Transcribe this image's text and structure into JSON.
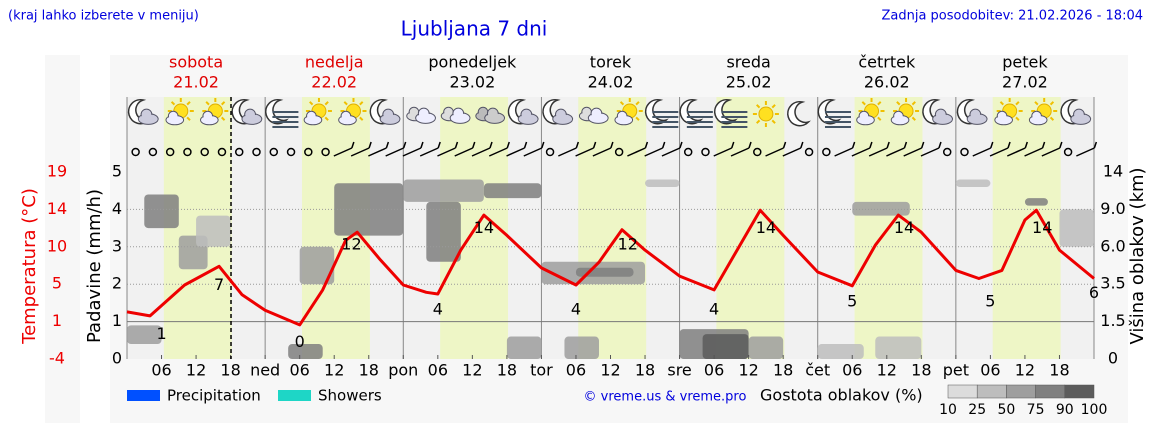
{
  "chart_data": {
    "type": "meteogram",
    "title": "Ljubljana 7 dni",
    "subtitle": "(kraj lahko izberete v meniju)",
    "updated": "Zadnja posodobitev: 21.02.2026 - 18:04",
    "credit": "© vreme.us & vreme.pro",
    "now": 18.07,
    "daylight": [
      6.4,
      18.2
    ],
    "days": [
      {
        "name": "sobota",
        "date": "21.02",
        "color": "#e00000"
      },
      {
        "name": "nedelja",
        "date": "22.02",
        "color": "#e00000"
      },
      {
        "name": "ponedeljek",
        "date": "23.02",
        "color": "#000000"
      },
      {
        "name": "torek",
        "date": "24.02",
        "color": "#000000"
      },
      {
        "name": "sreda",
        "date": "25.02",
        "color": "#000000"
      },
      {
        "name": "četrtek",
        "date": "26.02",
        "color": "#000000"
      },
      {
        "name": "petek",
        "date": "27.02",
        "color": "#000000"
      }
    ],
    "xlim": [
      0,
      168
    ],
    "xticks": [
      {
        "value": 6,
        "label": "06"
      },
      12,
      18,
      {
        "value": 24,
        "label": "ned"
      },
      {
        "value": 30,
        "label": "06"
      },
      {
        "value": 36,
        "label": "12"
      },
      {
        "value": 42,
        "label": "18"
      },
      {
        "value": 48,
        "label": "pon"
      },
      {
        "value": 54,
        "label": "06"
      },
      {
        "value": 60,
        "label": "12"
      },
      {
        "value": 66,
        "label": "18"
      },
      {
        "value": 72,
        "label": "tor"
      },
      {
        "value": 78,
        "label": "06"
      },
      {
        "value": 84,
        "label": "12"
      },
      {
        "value": 90,
        "label": "18"
      },
      {
        "value": 96,
        "label": "sre"
      },
      {
        "value": 102,
        "label": "06"
      },
      {
        "value": 108,
        "label": "12"
      },
      {
        "value": 114,
        "label": "18"
      },
      {
        "value": 120,
        "label": "čet"
      },
      {
        "value": 126,
        "label": "06"
      },
      {
        "value": 132,
        "label": "12"
      },
      {
        "value": 138,
        "label": "18"
      },
      {
        "value": 144,
        "label": "pet"
      },
      {
        "value": 150,
        "label": "06"
      },
      {
        "value": 156,
        "label": "12"
      },
      {
        "value": 162,
        "label": "18"
      }
    ],
    "ylabel": "Padavine (mm/h)",
    "ylim": [
      0,
      5
    ],
    "yticks": [
      0,
      1,
      2,
      3,
      4,
      5
    ],
    "temp_label": "Temperatura (°C)",
    "temp_lim": [
      -4,
      19
    ],
    "temp_ticks": [
      -4,
      {
        "value": 0.6,
        "label": "1"
      },
      {
        "value": 5.2,
        "label": "5"
      },
      {
        "value": 9.8,
        "label": "10"
      },
      {
        "value": 14.4,
        "label": "14"
      },
      19
    ],
    "y2label": "Višina oblakov (km)",
    "y2lim": [
      0,
      14
    ],
    "y2scale": "piecewise",
    "y2ticks": [
      0,
      1.5,
      3.5,
      {
        "value": 6,
        "label": "6.0"
      },
      {
        "value": 9,
        "label": "9.0"
      },
      14
    ],
    "grid": true,
    "temperature": {
      "color": "#ee0000",
      "x": [
        0,
        4,
        10,
        16,
        20,
        24,
        30,
        34,
        38,
        40,
        44,
        48,
        52,
        54,
        58,
        62,
        66,
        72,
        78,
        82,
        86,
        90,
        96,
        102,
        106,
        110,
        114,
        120,
        126,
        130,
        134,
        138,
        144,
        148,
        152,
        156,
        158,
        162,
        168
      ],
      "values": [
        1.8,
        1.3,
        5.1,
        7.4,
        3.9,
        2.0,
        0.2,
        4.5,
        10.6,
        11.6,
        8.2,
        5.1,
        4.2,
        4.0,
        9.4,
        13.7,
        11.2,
        7.2,
        5.1,
        7.9,
        11.9,
        9.4,
        6.2,
        4.5,
        9.4,
        14.3,
        11.2,
        6.7,
        5.0,
        10.0,
        13.7,
        11.6,
        6.9,
        5.9,
        6.9,
        13.1,
        14.3,
        9.4,
        5.9
      ]
    },
    "temp_labels": {
      "x": [
        6,
        16,
        30,
        39,
        54,
        62,
        78,
        87,
        102,
        111,
        126,
        135,
        150,
        159,
        168
      ],
      "values": [
        1,
        7,
        0,
        12,
        4,
        14,
        4,
        12,
        4,
        14,
        5,
        14,
        5,
        14,
        6
      ]
    },
    "clouds": {
      "start": [
        0,
        3,
        9,
        12,
        28,
        30,
        36,
        48,
        52,
        62,
        66,
        72,
        78,
        76,
        90,
        96,
        100,
        108,
        120,
        126,
        130,
        144,
        156,
        162
      ],
      "end": [
        6,
        9,
        14,
        18,
        34,
        36,
        48,
        62,
        58,
        72,
        72,
        90,
        88,
        82,
        96,
        108,
        108,
        114,
        128,
        136,
        138,
        150,
        160,
        168
      ],
      "base": [
        0.6,
        7.5,
        4.5,
        6,
        0,
        3.5,
        6.9,
        10,
        5,
        10.5,
        0,
        3.5,
        4,
        0,
        12,
        0,
        0,
        0,
        0,
        8.5,
        0,
        12,
        9.5,
        6
      ],
      "top": [
        1.35,
        11,
        6.9,
        8.5,
        0.6,
        6,
        12.5,
        13,
        10,
        12.5,
        0.9,
        5,
        4.6,
        0.9,
        13,
        1.2,
        1,
        0.9,
        0.6,
        10,
        0.9,
        13,
        10.5,
        9
      ],
      "density": [
        50,
        75,
        50,
        25,
        75,
        50,
        75,
        50,
        75,
        75,
        50,
        50,
        75,
        50,
        25,
        75,
        90,
        50,
        25,
        50,
        25,
        25,
        75,
        25
      ]
    },
    "legend": [
      {
        "name": "Precipitation",
        "color": "#0050ff"
      },
      {
        "name": "Showers",
        "color": "#1ed6c6"
      }
    ],
    "density_label": "Gostota oblakov (%)",
    "density_ticks": [
      10,
      25,
      50,
      75,
      90,
      100
    ],
    "density_colors": [
      "#dcdcdc",
      "#bdbdbd",
      "#9e9e9e",
      "#7f7f7f",
      "#5c5c5c"
    ]
  }
}
